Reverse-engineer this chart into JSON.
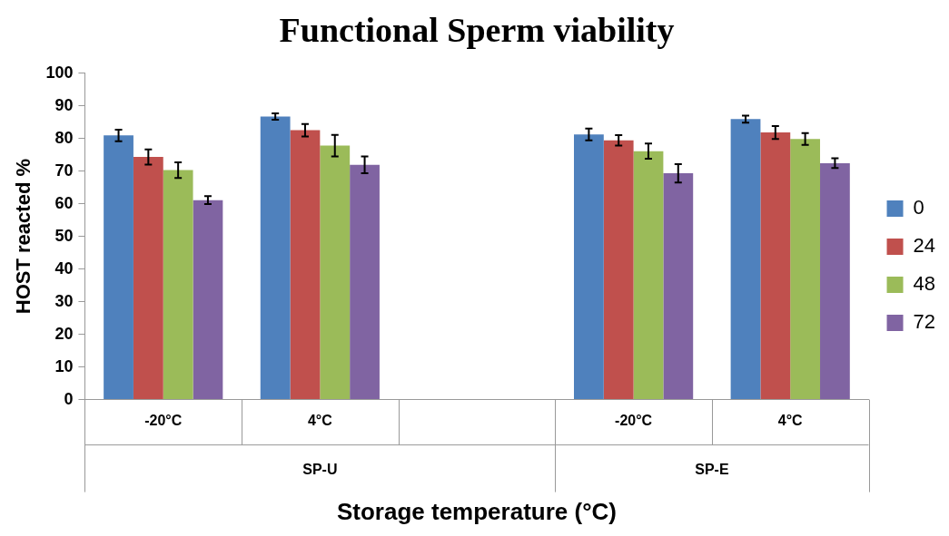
{
  "chart_data": {
    "type": "bar",
    "title": "Functional Sperm viability",
    "xlabel": "Storage temperature (°C)",
    "ylabel": "HOST reacted %",
    "categories": [
      "-20°C",
      "4°C",
      null,
      "-20°C",
      "4°C"
    ],
    "series": [
      {
        "name": "0",
        "color": "#4f81bd",
        "values": [
          80.9,
          86.7,
          null,
          81.2,
          85.9
        ],
        "errors": [
          1.8,
          1.0,
          null,
          1.8,
          1.1
        ]
      },
      {
        "name": "24",
        "color": "#c0504d",
        "values": [
          74.3,
          82.5,
          null,
          79.4,
          81.8
        ],
        "errors": [
          2.3,
          1.9,
          null,
          1.6,
          2.0
        ]
      },
      {
        "name": "48",
        "color": "#9bbb59",
        "values": [
          70.3,
          77.8,
          null,
          76.1,
          79.8
        ],
        "errors": [
          2.4,
          3.3,
          null,
          2.3,
          1.8
        ]
      },
      {
        "name": "72",
        "color": "#8064a2",
        "values": [
          61.1,
          71.9,
          null,
          69.3,
          72.4
        ],
        "errors": [
          1.2,
          2.6,
          null,
          2.8,
          1.5
        ]
      }
    ],
    "annotations": [
      "SP-U",
      "SP-E"
    ],
    "ylim": [
      0,
      100
    ],
    "yticks": [
      0,
      10,
      20,
      30,
      40,
      50,
      60,
      70,
      80,
      90,
      100
    ],
    "grid": false,
    "legend": "right"
  }
}
